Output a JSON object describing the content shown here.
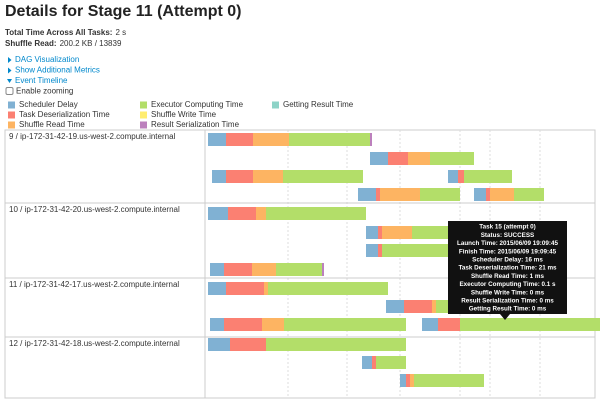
{
  "header": {
    "title": "Details for Stage 11 (Attempt 0)"
  },
  "summary": [
    {
      "label": "Total Time Across All Tasks:",
      "value": "2 s"
    },
    {
      "label": "Shuffle Read:",
      "value": "200.2 KB / 13839"
    }
  ],
  "links": [
    "DAG Visualization",
    "Show Additional Metrics",
    "Event Timeline"
  ],
  "checkbox": "Enable zooming",
  "legend": [
    {
      "name": "Scheduler Delay",
      "color": "#80b1d3"
    },
    {
      "name": "Task Deserialization Time",
      "color": "#fb8072"
    },
    {
      "name": "Shuffle Read Time",
      "color": "#fdb462"
    },
    {
      "name": "Executor Computing Time",
      "color": "#b3de69"
    },
    {
      "name": "Shuffle Write Time",
      "color": "#ffed6f"
    },
    {
      "name": "Result Serialization Time",
      "color": "#bc80bd"
    },
    {
      "name": "Getting Result Time",
      "color": "#8dd3c7"
    }
  ],
  "executors": [
    "9 / ip-172-31-42-19.us-west-2.compute.internal",
    "10 / ip-172-31-42-20.us-west-2.compute.internal",
    "11 / ip-172-31-42-17.us-west-2.compute.internal",
    "12 / ip-172-31-42-18.us-west-2.compute.internal"
  ],
  "tooltip": {
    "lines": [
      "Task 15 (attempt 0)",
      "Status: SUCCESS",
      "Launch Time: 2015/06/09 19:09:45",
      "Finish Time: 2015/06/09 19:09:45",
      "Scheduler Delay: 16 ms",
      "Task Deserialization Time: 21 ms",
      "Shuffle Read Time: 1 ms",
      "Executor Computing Time: 0.1 s",
      "Shuffle Write Time: 0 ms",
      "Result Serialization Time: 0 ms",
      "Getting Result Time: 0 ms"
    ]
  }
}
